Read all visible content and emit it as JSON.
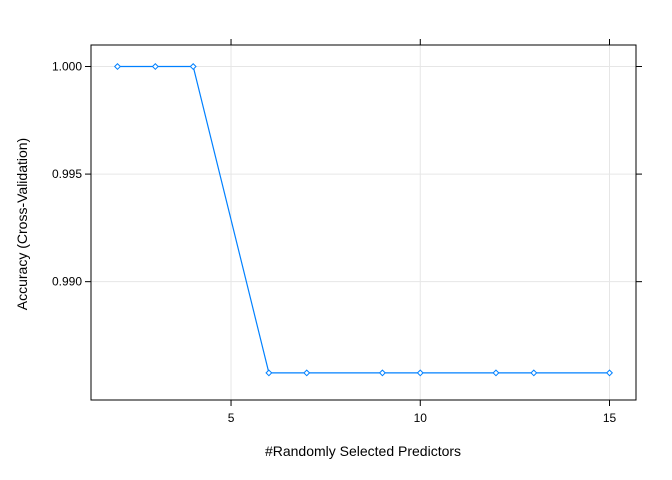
{
  "chart_data": {
    "type": "line",
    "title": "",
    "xlabel": "#Randomly Selected Predictors",
    "ylabel": "Accuracy (Cross-Validation)",
    "x": [
      2,
      3,
      4,
      6,
      7,
      9,
      10,
      12,
      13,
      15
    ],
    "series": [
      {
        "values": [
          1.0,
          1.0,
          1.0,
          0.98576,
          0.98576,
          0.98576,
          0.98576,
          0.98576,
          0.98576,
          0.98576
        ]
      }
    ],
    "xlim": [
      1.3,
      15.7
    ],
    "ylim": [
      0.9845,
      1.001
    ],
    "xticks": [
      5,
      10,
      15
    ],
    "xtick_labels": [
      "5",
      "10",
      "15"
    ],
    "yticks": [
      0.99,
      0.995,
      1.0
    ],
    "ytick_labels": [
      "0.990",
      "0.995",
      "1.000"
    ],
    "grid": true,
    "legend": "none",
    "colors": {
      "series": "#0080ff",
      "grid": "#e6e6e6",
      "frame": "#000000"
    },
    "marker": "open-diamond"
  }
}
